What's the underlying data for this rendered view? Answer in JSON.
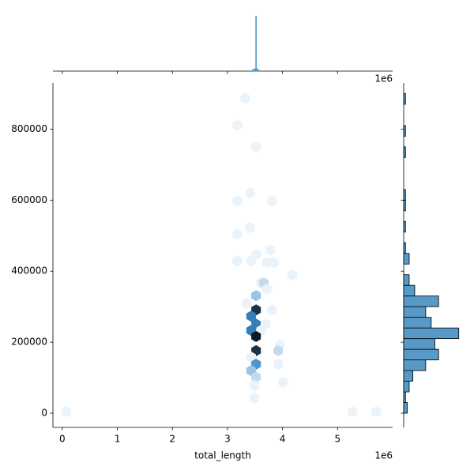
{
  "chart_data": {
    "type": "hexbin",
    "xlabel": "total_length",
    "x_offset_label": "1e6",
    "xlim": [
      -170000,
      6000000
    ],
    "ylim": [
      -40000,
      930000
    ],
    "xticks": [
      {
        "value": 0,
        "label": "0"
      },
      {
        "value": 1000000,
        "label": "1"
      },
      {
        "value": 2000000,
        "label": "2"
      },
      {
        "value": 3000000,
        "label": "3"
      },
      {
        "value": 4000000,
        "label": "4"
      },
      {
        "value": 5000000,
        "label": "5"
      }
    ],
    "yticks": [
      0,
      200000,
      400000,
      600000,
      800000
    ],
    "cmap": [
      "#eaf2fa",
      "#3a8ac8",
      "#0c1a26"
    ],
    "x": [
      3320000,
      3180000,
      3520000,
      3180000,
      3410000,
      3810000,
      3410000,
      3180000,
      3780000,
      3520000,
      3430000,
      3180000,
      3720000,
      3840000,
      4180000,
      3610000,
      3660000,
      3720000,
      3520000,
      3350000,
      3810000,
      3520000,
      3430000,
      3520000,
      3690000,
      3610000,
      3430000,
      3520000,
      3950000,
      3520000,
      3920000,
      3430000,
      3520000,
      3920000,
      3430000,
      3520000,
      4010000,
      3490000,
      3490000,
      70000,
      5270000,
      5700000
    ],
    "y": [
      887000,
      811000,
      751000,
      598000,
      620000,
      598000,
      522000,
      504000,
      460000,
      447000,
      429000,
      429000,
      424000,
      424000,
      389000,
      367000,
      367000,
      349000,
      331000,
      309000,
      291000,
      291000,
      273000,
      251000,
      251000,
      233000,
      233000,
      216000,
      193000,
      176000,
      176000,
      158000,
      138000,
      138000,
      120000,
      102000,
      87000,
      78000,
      42000,
      4000,
      4000,
      4000
    ],
    "counts": [
      1,
      1,
      1,
      1,
      1,
      1,
      1,
      1,
      1,
      1,
      1,
      1,
      1,
      1,
      1,
      1,
      2,
      1,
      3,
      1,
      1,
      9,
      6,
      6,
      1,
      1,
      6,
      10,
      1,
      9,
      2,
      1,
      5,
      1,
      3,
      2,
      1,
      1,
      1,
      1,
      1,
      1
    ],
    "hist_color": "#5799c7",
    "x_marginal": {
      "bins": [
        3450000,
        3480000,
        3510000,
        3530000,
        3560000,
        3600000
      ],
      "counts": [
        2,
        3,
        70,
        3,
        1
      ],
      "lim": [
        0,
        75
      ]
    },
    "y_marginal": {
      "bins": [
        0,
        30000,
        60000,
        90000,
        120000,
        150000,
        180000,
        210000,
        240000,
        270000,
        300000,
        330000,
        360000,
        390000,
        420000,
        450000,
        480000,
        510000,
        540000,
        570000,
        600000,
        630000,
        660000,
        690000,
        720000,
        750000,
        780000,
        810000,
        840000,
        870000,
        900000
      ],
      "counts": [
        2,
        1,
        3,
        5,
        12,
        19,
        17,
        30,
        15,
        12,
        19,
        6,
        3,
        0,
        3,
        1,
        0,
        1,
        0,
        1,
        1,
        0,
        0,
        0,
        1,
        0,
        1,
        0,
        0,
        1
      ],
      "lim": [
        0,
        34
      ]
    }
  }
}
